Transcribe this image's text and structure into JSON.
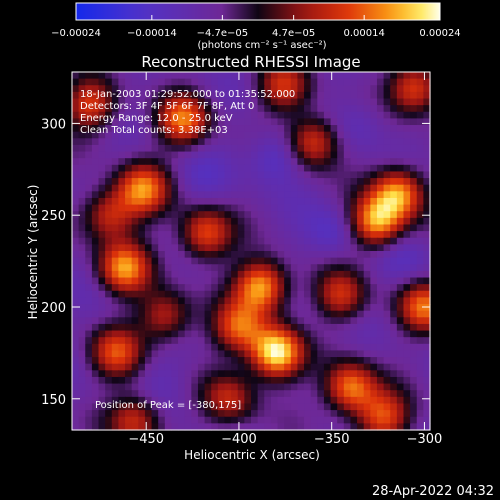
{
  "chart_data": {
    "type": "heatmap",
    "title": "Reconstructed RHESSI Image",
    "xlabel": "Heliocentric X (arcsec)",
    "ylabel": "Heliocentric Y (arcsec)",
    "xlim": [
      -490,
      -297
    ],
    "ylim": [
      133,
      328
    ],
    "x_ticks": [
      -450,
      -400,
      -350,
      -300
    ],
    "y_ticks": [
      150,
      200,
      250,
      300
    ],
    "x_tick_labels": [
      "−450",
      "−400",
      "−350",
      "−300"
    ],
    "y_tick_labels": [
      "150",
      "200",
      "250",
      "300"
    ],
    "colorbar": {
      "range": [
        -0.00024,
        0.00024
      ],
      "ticks": [
        -0.00024,
        -0.00014,
        -4.7e-05,
        4.7e-05,
        0.00014,
        0.00024
      ],
      "tick_labels": [
        "−0.00024",
        "−0.00014",
        "−4.7e−05",
        "4.7e−05",
        "0.00014",
        "0.00024"
      ],
      "unit_label": "(photons cm⁻² s⁻¹ asec⁻²)"
    },
    "annotations": [
      "18-Jan-2003 01:29:52.000 to 01:35:52.000",
      "Detectors: 3F 4F 5F 6F 7F 8F, Att 0",
      "Energy Range: 12.0 - 25.0 keV",
      "Clean     Total counts: 3.38E+03"
    ],
    "peak_label": "Position of Peak = [-380,175]",
    "peak": [
      -380,
      175
    ],
    "hotspots": [
      {
        "x": -380,
        "y": 175,
        "value": 0.00024
      },
      {
        "x": -388,
        "y": 211,
        "value": 0.00019
      },
      {
        "x": -326,
        "y": 246,
        "value": 0.00018
      },
      {
        "x": -314,
        "y": 262,
        "value": 0.00017
      },
      {
        "x": -462,
        "y": 221,
        "value": 0.00016
      },
      {
        "x": -452,
        "y": 264,
        "value": 0.00015
      },
      {
        "x": -430,
        "y": 302,
        "value": 0.00014
      },
      {
        "x": -305,
        "y": 319,
        "value": 0.00013
      },
      {
        "x": -340,
        "y": 156,
        "value": 0.00016
      },
      {
        "x": -322,
        "y": 140,
        "value": 0.00012
      },
      {
        "x": -418,
        "y": 240,
        "value": 0.00013
      },
      {
        "x": -400,
        "y": 189,
        "value": 0.00012
      },
      {
        "x": -466,
        "y": 175,
        "value": 0.00011
      },
      {
        "x": -456,
        "y": 138,
        "value": 0.0001
      },
      {
        "x": -360,
        "y": 290,
        "value": 0.00012
      },
      {
        "x": -480,
        "y": 310,
        "value": 0.00011
      },
      {
        "x": -376,
        "y": 320,
        "value": 9e-05
      },
      {
        "x": -345,
        "y": 206,
        "value": 0.0001
      },
      {
        "x": -300,
        "y": 200,
        "value": 0.00013
      },
      {
        "x": -440,
        "y": 195,
        "value": 9e-05
      },
      {
        "x": -405,
        "y": 150,
        "value": 8e-05
      },
      {
        "x": -470,
        "y": 250,
        "value": 0.0001
      }
    ],
    "coldspots": [
      {
        "x": -380,
        "y": 282,
        "value": -0.00016
      },
      {
        "x": -350,
        "y": 240,
        "value": -0.00014
      },
      {
        "x": -335,
        "y": 300,
        "value": -0.00012
      },
      {
        "x": -420,
        "y": 270,
        "value": -0.00011
      },
      {
        "x": -310,
        "y": 225,
        "value": -0.00012
      },
      {
        "x": -360,
        "y": 192,
        "value": -9e-05
      },
      {
        "x": -440,
        "y": 160,
        "value": -0.0001
      },
      {
        "x": -475,
        "y": 200,
        "value": -8e-05
      }
    ]
  },
  "footer": {
    "date": "28-Apr-2022 04:32"
  }
}
